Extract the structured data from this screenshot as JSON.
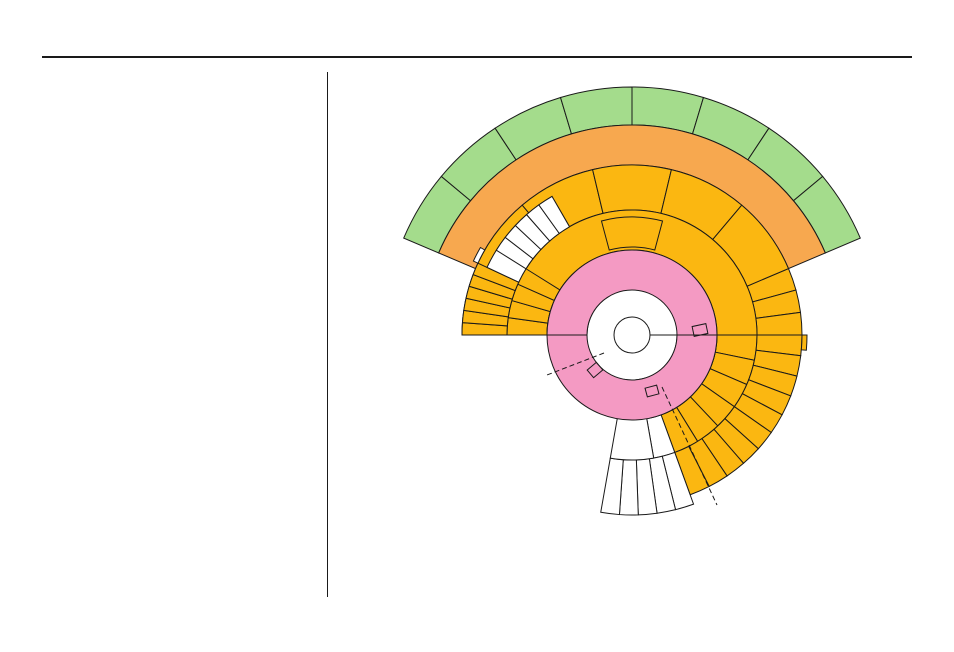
{
  "colors": {
    "stroke": "#1a1a1a",
    "core": "#58bfee",
    "inner_ring": "#f49ac3",
    "lavender": "#d6a4d6",
    "amber": "#fbb711",
    "orange": "#f7a84f",
    "green": "#a4dc8c",
    "white": "#ffffff"
  },
  "diagram": {
    "type": "sunburst",
    "rings": [
      {
        "name": "core",
        "color": "core"
      },
      {
        "name": "second",
        "color": "inner_ring"
      },
      {
        "name": "third",
        "color": "amber"
      },
      {
        "name": "fourth",
        "color": "amber"
      },
      {
        "name": "fifth",
        "color": "orange"
      },
      {
        "name": "outer",
        "color": "green"
      }
    ],
    "branches": [
      {
        "name": "left-lower",
        "colors": [
          "lavender",
          "amber",
          "white"
        ]
      },
      {
        "name": "bottom",
        "colors": [
          "white"
        ]
      },
      {
        "name": "right-lower",
        "colors": [
          "lavender",
          "amber",
          "amber"
        ]
      }
    ]
  }
}
